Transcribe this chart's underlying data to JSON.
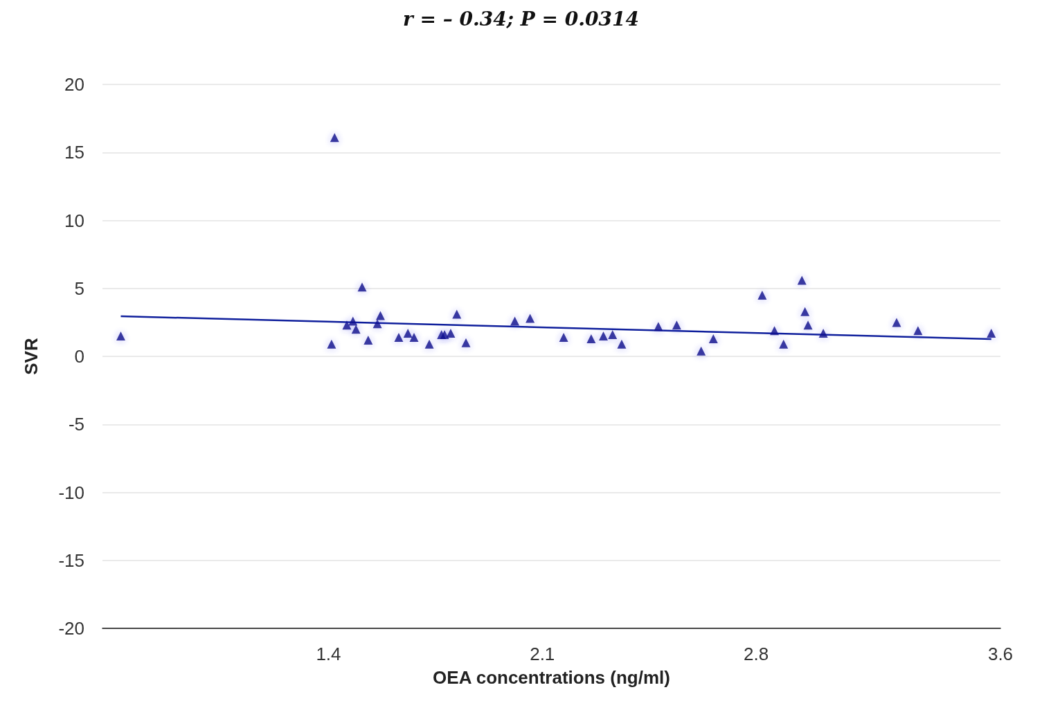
{
  "chart_data": {
    "type": "scatter",
    "title": "r = – 0.34; P = 0.0314",
    "xlabel": "OEA concentrations (ng/ml)",
    "ylabel": "SVR",
    "xlim": [
      0.66,
      3.6
    ],
    "xticks": [
      1.4,
      2.1,
      2.8,
      3.6
    ],
    "ylim": [
      -20,
      20
    ],
    "yticks": [
      -20,
      -15,
      -10,
      -5,
      0,
      5,
      10,
      15,
      20
    ],
    "grid": "y",
    "marker": "triangle",
    "series": [
      {
        "color": "#0d0d8a",
        "x": [
          0.72,
          1.42,
          1.41,
          1.46,
          1.48,
          1.49,
          1.51,
          1.53,
          1.56,
          1.57,
          1.63,
          1.66,
          1.68,
          1.73,
          1.77,
          1.78,
          1.8,
          1.82,
          1.85,
          2.01,
          2.06,
          2.17,
          2.26,
          2.3,
          2.33,
          2.36,
          2.48,
          2.54,
          2.62,
          2.66,
          2.82,
          2.86,
          2.89,
          2.95,
          2.96,
          2.97,
          3.02,
          3.26,
          3.33,
          3.57
        ],
        "values": [
          1.5,
          16.1,
          0.9,
          2.3,
          2.6,
          2.0,
          5.1,
          1.2,
          2.4,
          3.0,
          1.4,
          1.7,
          1.4,
          0.9,
          1.6,
          1.6,
          1.7,
          3.1,
          1.0,
          2.6,
          2.8,
          1.4,
          1.3,
          1.5,
          1.6,
          0.9,
          2.2,
          2.3,
          0.4,
          1.3,
          4.5,
          1.9,
          0.9,
          5.6,
          3.3,
          2.3,
          1.7,
          2.5,
          1.9,
          1.7
        ]
      },
      {
        "type": "line",
        "color": "#0f1f9c",
        "marker": "none",
        "line_style": "solid",
        "x": [
          0.72,
          3.57
        ],
        "values": [
          2.95,
          1.27
        ]
      }
    ]
  }
}
